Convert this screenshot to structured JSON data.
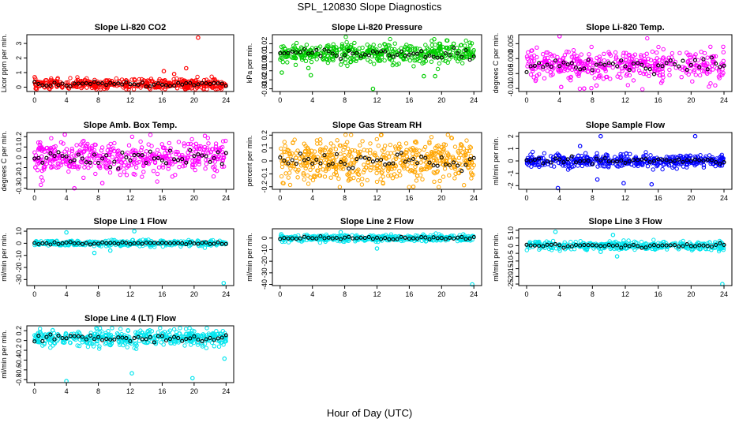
{
  "title": "SPL_120830  Slope Diagnostics",
  "shared_xlabel": "Hour of Day (UTC)",
  "chart_data": [
    {
      "type": "scatter",
      "title": "Slope Li-820 CO2",
      "ylabel": "Licor ppm per min.",
      "xlim": [
        0,
        24
      ],
      "ylim": [
        -0.3,
        3.6
      ],
      "yticks": [
        0,
        1,
        2,
        3
      ],
      "color": "#ff0000",
      "n": 420,
      "center": 0.2,
      "spread": 0.18,
      "outliers": [
        {
          "x": 20.5,
          "y": 3.4
        },
        {
          "x": 19,
          "y": 1.3
        },
        {
          "x": 16.2,
          "y": 1.1
        },
        {
          "x": 17.5,
          "y": 0.9
        }
      ]
    },
    {
      "type": "scatter",
      "title": "Slope Li-820 Pressure",
      "ylabel": "kPa per min.",
      "xlim": [
        0,
        24
      ],
      "ylim": [
        -0.033,
        0.03
      ],
      "yticks": [
        -0.03,
        -0.02,
        -0.01,
        0.0,
        0.01,
        0.02
      ],
      "color": "#00cc00",
      "n": 460,
      "center": 0.009,
      "spread": 0.006,
      "outliers": [
        {
          "x": 0.2,
          "y": -0.012
        },
        {
          "x": 3.5,
          "y": -0.007
        },
        {
          "x": 3.8,
          "y": -0.015
        },
        {
          "x": 11.5,
          "y": -0.03
        },
        {
          "x": 17.8,
          "y": -0.016
        },
        {
          "x": 19.2,
          "y": -0.016
        },
        {
          "x": 21.5,
          "y": 0.02
        }
      ]
    },
    {
      "type": "scatter",
      "title": "Slope Li-820 Temp.",
      "ylabel": "degrees C per min.",
      "xlim": [
        0,
        24
      ],
      "ylim": [
        -0.011,
        0.008
      ],
      "yticks": [
        -0.01,
        -0.005,
        0.0,
        0.005
      ],
      "color": "#ff00ff",
      "n": 440,
      "center": -0.002,
      "spread": 0.0025,
      "outliers": [
        {
          "x": 4,
          "y": 0.0075
        },
        {
          "x": 4.2,
          "y": -0.0095
        },
        {
          "x": 7,
          "y": -0.01
        },
        {
          "x": 8.5,
          "y": -0.009
        }
      ]
    },
    {
      "type": "scatter",
      "title": "Slope Amb. Box Temp.",
      "ylabel": "degrees C per min.",
      "xlim": [
        0,
        24
      ],
      "ylim": [
        -0.31,
        0.24
      ],
      "yticks": [
        -0.3,
        -0.2,
        -0.1,
        0.0,
        0.1,
        0.2
      ],
      "color": "#ff00ff",
      "n": 460,
      "center": 0.0,
      "spread": 0.08,
      "outliers": [
        {
          "x": 5,
          "y": -0.3
        },
        {
          "x": 3.8,
          "y": 0.22
        },
        {
          "x": 8.5,
          "y": -0.25
        }
      ]
    },
    {
      "type": "scatter",
      "title": "Slope Gas Stream RH",
      "ylabel": "percent per min.",
      "xlim": [
        0,
        24
      ],
      "ylim": [
        -0.22,
        0.22
      ],
      "yticks": [
        -0.2,
        -0.1,
        0.0,
        0.1,
        0.2
      ],
      "color": "#ffa500",
      "n": 520,
      "center": 0.0,
      "spread": 0.08,
      "outliers": [
        {
          "x": 12.5,
          "y": 0.2
        },
        {
          "x": 16.5,
          "y": -0.2
        }
      ]
    },
    {
      "type": "scatter",
      "title": "Slope Sample Flow",
      "ylabel": "ml/min per min.",
      "xlim": [
        0,
        24
      ],
      "ylim": [
        -2.3,
        2.3
      ],
      "yticks": [
        -2,
        -1,
        0,
        1,
        2
      ],
      "color": "#0000ff",
      "n": 460,
      "center": 0.0,
      "spread": 0.25,
      "outliers": [
        {
          "x": 3.8,
          "y": -2.2
        },
        {
          "x": 9,
          "y": 2.0
        },
        {
          "x": 11.8,
          "y": -1.8
        },
        {
          "x": 15.2,
          "y": -1.9
        },
        {
          "x": 20.5,
          "y": 2.0
        },
        {
          "x": 6.5,
          "y": 1.2
        },
        {
          "x": 8.6,
          "y": -1.5
        }
      ]
    },
    {
      "type": "scatter",
      "title": "Slope Line 1 Flow",
      "ylabel": "ml/min per min.",
      "xlim": [
        0,
        24
      ],
      "ylim": [
        -35,
        12
      ],
      "yticks": [
        -30,
        -20,
        -10,
        0,
        10
      ],
      "color": "#00e5ee",
      "n": 380,
      "center": 0.0,
      "spread": 1.2,
      "outliers": [
        {
          "x": 23.7,
          "y": -33
        },
        {
          "x": 12.5,
          "y": 10
        },
        {
          "x": 4,
          "y": 9
        },
        {
          "x": 7.5,
          "y": -8
        },
        {
          "x": 9.5,
          "y": -6
        }
      ]
    },
    {
      "type": "scatter",
      "title": "Slope Line 2 Flow",
      "ylabel": "ml/min per min.",
      "xlim": [
        0,
        24
      ],
      "ylim": [
        -41,
        8
      ],
      "yticks": [
        -40,
        -30,
        -20,
        -10,
        0
      ],
      "color": "#00e5ee",
      "n": 400,
      "center": 0.0,
      "spread": 1.4,
      "outliers": [
        {
          "x": 23.8,
          "y": -40
        },
        {
          "x": 12,
          "y": -9
        },
        {
          "x": 7.5,
          "y": 5
        }
      ]
    },
    {
      "type": "scatter",
      "title": "Slope Line 3 Flow",
      "ylabel": "ml/min per min.",
      "xlim": [
        0,
        24
      ],
      "ylim": [
        -26,
        11
      ],
      "yticks": [
        -25,
        -20,
        -15,
        -10,
        -5,
        0,
        5,
        10
      ],
      "color": "#00e5ee",
      "n": 380,
      "center": 0.0,
      "spread": 1.3,
      "outliers": [
        {
          "x": 23.8,
          "y": -25
        },
        {
          "x": 3.5,
          "y": 9
        },
        {
          "x": 10.5,
          "y": 7
        },
        {
          "x": 11,
          "y": -7
        },
        {
          "x": 9,
          "y": -4
        }
      ]
    },
    {
      "type": "scatter",
      "title": "Slope Line 4 (LT) Flow",
      "ylabel": "ml/min per min.",
      "xlim": [
        0,
        24
      ],
      "ylim": [
        -0.86,
        0.3
      ],
      "yticks": [
        -0.8,
        -0.6,
        -0.4,
        -0.2,
        0.0,
        0.2
      ],
      "color": "#00e5ee",
      "n": 460,
      "center": 0.05,
      "spread": 0.08,
      "outliers": [
        {
          "x": 4,
          "y": -0.83
        },
        {
          "x": 12.2,
          "y": -0.67
        },
        {
          "x": 19.8,
          "y": -0.77
        },
        {
          "x": 23.8,
          "y": -0.37
        }
      ]
    }
  ],
  "xticks": [
    0,
    4,
    8,
    12,
    16,
    20,
    24
  ]
}
